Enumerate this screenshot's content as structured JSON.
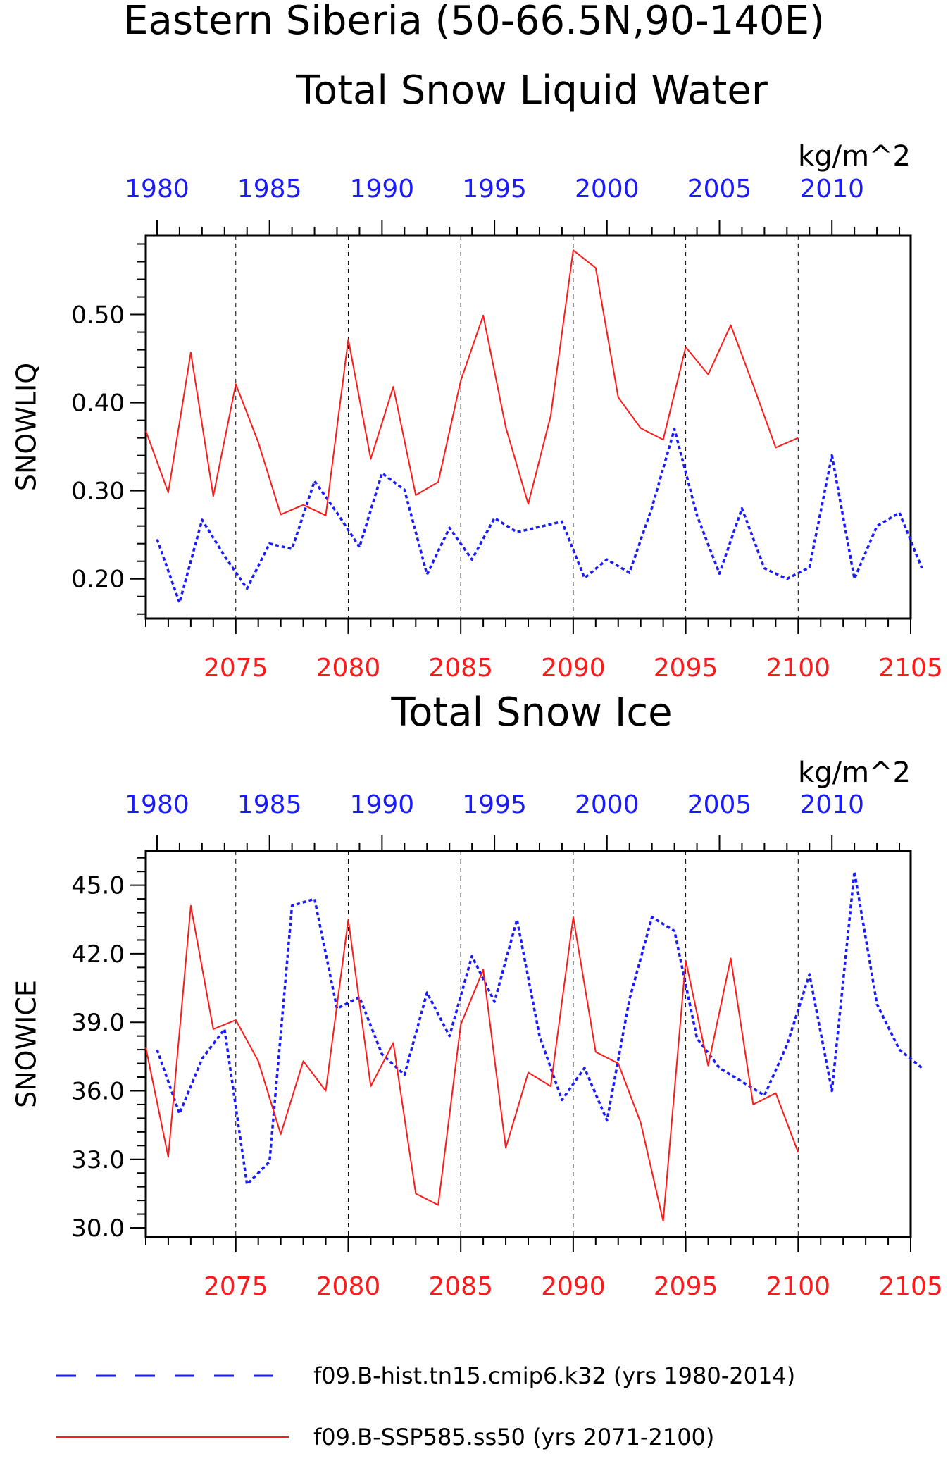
{
  "page": {
    "title_line1": "Eastern Siberia (50-66.5N,90-140E)",
    "panel1_title": "Total Snow Liquid Water",
    "panel2_title": "Total Snow Ice"
  },
  "colors": {
    "hist": "#1a1aff",
    "ssp": "#ff1a1a",
    "axis": "#000000"
  },
  "legend": [
    {
      "label": "f09.B-hist.tn15.cmip6.k32 (yrs 1980-2014)",
      "color": "#1a1aff",
      "style": "dashed"
    },
    {
      "label": "f09.B-SSP585.ss50 (yrs 2071-2100)",
      "color": "#ff1a1a",
      "style": "solid"
    }
  ],
  "chart_data": [
    {
      "type": "line",
      "title": "Total Snow Liquid Water",
      "ylabel": "SNOWLIQ",
      "units": "kg/m^2",
      "ylim": [
        0.155,
        0.59
      ],
      "yticks": [
        0.2,
        0.3,
        0.4,
        0.5
      ],
      "yticklabels": [
        "0.20",
        "0.30",
        "0.40",
        "0.50"
      ],
      "top_axis": {
        "range": [
          1979.5,
          2013.5
        ],
        "ticks": [
          1980,
          1985,
          1990,
          1995,
          2000,
          2005,
          2010
        ]
      },
      "bottom_axis": {
        "range": [
          2071,
          2105
        ],
        "ticks": [
          2075,
          2080,
          2085,
          2090,
          2095,
          2100,
          2105
        ]
      },
      "grid": "dashed vertical at bottom-axis ticks",
      "series": [
        {
          "name": "f09.B-hist.tn15.cmip6.k32 (yrs 1980-2014)",
          "axis": "top",
          "style": "dashed",
          "x": [
            1980,
            1981,
            1982,
            1983,
            1984,
            1985,
            1986,
            1987,
            1988,
            1989,
            1990,
            1991,
            1992,
            1993,
            1994,
            1995,
            1996,
            1997,
            1998,
            1999,
            2000,
            2001,
            2002,
            2003,
            2004,
            2005,
            2006,
            2007,
            2008,
            2009,
            2010,
            2011,
            2012,
            2013,
            2014
          ],
          "values": [
            0.245,
            0.173,
            0.267,
            0.226,
            0.189,
            0.24,
            0.234,
            0.311,
            0.275,
            0.236,
            0.32,
            0.301,
            0.205,
            0.258,
            0.222,
            0.269,
            0.253,
            0.259,
            0.265,
            0.201,
            0.222,
            0.207,
            0.281,
            0.37,
            0.272,
            0.206,
            0.28,
            0.212,
            0.2,
            0.213,
            0.34,
            0.2,
            0.26,
            0.275,
            0.212
          ]
        },
        {
          "name": "f09.B-SSP585.ss50 (yrs 2071-2100)",
          "axis": "bottom",
          "style": "solid",
          "x": [
            2071,
            2072,
            2073,
            2074,
            2075,
            2076,
            2077,
            2078,
            2079,
            2080,
            2081,
            2082,
            2083,
            2084,
            2085,
            2086,
            2087,
            2088,
            2089,
            2090,
            2091,
            2092,
            2093,
            2094,
            2095,
            2096,
            2097,
            2098,
            2099,
            2100
          ],
          "values": [
            0.368,
            0.298,
            0.457,
            0.294,
            0.421,
            0.355,
            0.273,
            0.284,
            0.272,
            0.472,
            0.336,
            0.418,
            0.295,
            0.31,
            0.425,
            0.499,
            0.372,
            0.285,
            0.385,
            0.573,
            0.553,
            0.406,
            0.371,
            0.358,
            0.463,
            0.432,
            0.488,
            0.42,
            0.349,
            0.36
          ]
        }
      ]
    },
    {
      "type": "line",
      "title": "Total Snow Ice",
      "ylabel": "SNOWICE",
      "units": "kg/m^2",
      "ylim": [
        29.6,
        46.5
      ],
      "yticks": [
        30,
        33,
        36,
        39,
        42,
        45
      ],
      "yticklabels": [
        "30.0",
        "33.0",
        "36.0",
        "39.0",
        "42.0",
        "45.0"
      ],
      "top_axis": {
        "range": [
          1979.5,
          2013.5
        ],
        "ticks": [
          1980,
          1985,
          1990,
          1995,
          2000,
          2005,
          2010
        ]
      },
      "bottom_axis": {
        "range": [
          2071,
          2105
        ],
        "ticks": [
          2075,
          2080,
          2085,
          2090,
          2095,
          2100,
          2105
        ]
      },
      "grid": "dashed vertical at bottom-axis ticks",
      "series": [
        {
          "name": "f09.B-hist.tn15.cmip6.k32 (yrs 1980-2014)",
          "axis": "top",
          "style": "dashed",
          "x": [
            1980,
            1981,
            1982,
            1983,
            1984,
            1985,
            1986,
            1987,
            1988,
            1989,
            1990,
            1991,
            1992,
            1993,
            1994,
            1995,
            1996,
            1997,
            1998,
            1999,
            2000,
            2001,
            2002,
            2003,
            2004,
            2005,
            2006,
            2007,
            2008,
            2009,
            2010,
            2011,
            2012,
            2013,
            2014
          ],
          "values": [
            37.8,
            35.0,
            37.4,
            38.7,
            31.9,
            32.9,
            44.1,
            44.4,
            39.6,
            40.1,
            37.6,
            36.7,
            40.3,
            38.4,
            41.9,
            39.9,
            43.5,
            38.4,
            35.6,
            37.0,
            34.7,
            40.0,
            43.6,
            43.0,
            38.3,
            37.0,
            36.4,
            35.8,
            38.0,
            41.1,
            36.0,
            45.6,
            39.8,
            37.8,
            37.0
          ]
        },
        {
          "name": "f09.B-SSP585.ss50 (yrs 2071-2100)",
          "axis": "bottom",
          "style": "solid",
          "x": [
            2071,
            2072,
            2073,
            2074,
            2075,
            2076,
            2077,
            2078,
            2079,
            2080,
            2081,
            2082,
            2083,
            2084,
            2085,
            2086,
            2087,
            2088,
            2089,
            2090,
            2091,
            2092,
            2093,
            2094,
            2095,
            2096,
            2097,
            2098,
            2099,
            2100
          ],
          "values": [
            37.9,
            33.1,
            44.1,
            38.7,
            39.1,
            37.3,
            34.1,
            37.3,
            36.0,
            43.5,
            36.2,
            38.1,
            31.5,
            31.0,
            38.9,
            41.3,
            33.5,
            36.8,
            36.2,
            43.6,
            37.7,
            37.2,
            34.6,
            30.3,
            41.7,
            37.1,
            41.8,
            35.4,
            35.9,
            33.3
          ]
        }
      ]
    }
  ]
}
